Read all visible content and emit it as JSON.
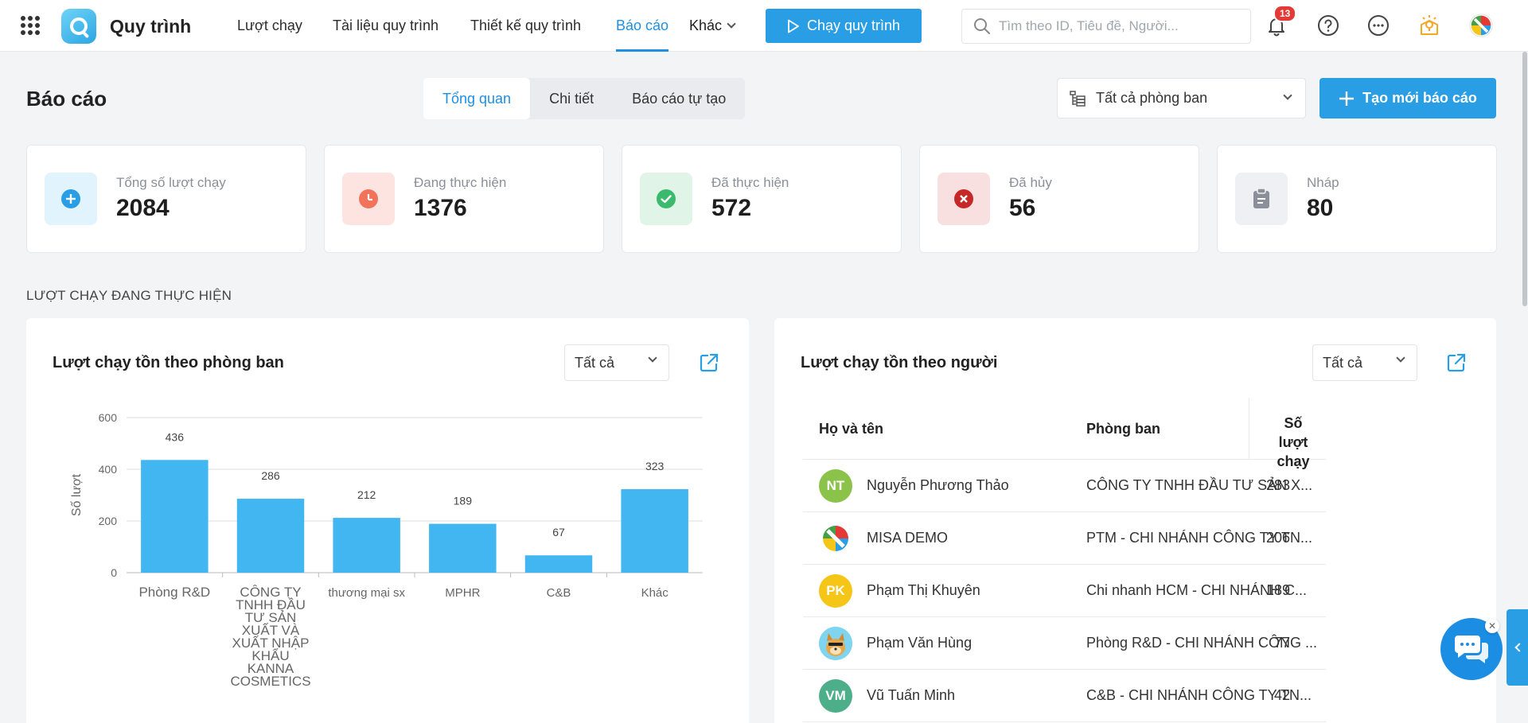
{
  "app": {
    "title": "Quy trình"
  },
  "nav": {
    "items": [
      {
        "label": "Lượt chạy"
      },
      {
        "label": "Tài liệu quy trình"
      },
      {
        "label": "Thiết kế quy trình"
      },
      {
        "label": "Báo cáo"
      }
    ],
    "more_label": "Khác",
    "run_button": "Chạy quy trình"
  },
  "search": {
    "placeholder": "Tìm theo ID, Tiêu đề, Người..."
  },
  "notifications": {
    "count": "13"
  },
  "page": {
    "title": "Báo cáo"
  },
  "tabs": [
    {
      "label": "Tổng quan"
    },
    {
      "label": "Chi tiết"
    },
    {
      "label": "Báo cáo tự tạo"
    }
  ],
  "department_filter": {
    "value": "Tất cả phòng ban"
  },
  "create_button": "Tạo mới báo cáo",
  "stats": [
    {
      "label": "Tổng số lượt chạy",
      "value": "2084",
      "color": "#2a9ee4",
      "bg": "#e1f3fd",
      "icon": "plus-circle-icon"
    },
    {
      "label": "Đang thực hiện",
      "value": "1376",
      "color": "#f0735a",
      "bg": "#fde4e1",
      "icon": "clock-icon"
    },
    {
      "label": "Đã thực hiện",
      "value": "572",
      "color": "#3bba6d",
      "bg": "#e0f5e8",
      "icon": "check-circle-icon"
    },
    {
      "label": "Đã hủy",
      "value": "56",
      "color": "#d32f2f",
      "bg": "#f9e0e0",
      "icon": "x-circle-icon"
    },
    {
      "label": "Nháp",
      "value": "80",
      "color": "#8a8f99",
      "bg": "#eef0f3",
      "icon": "clipboard-icon"
    }
  ],
  "section_title": "LƯỢT CHẠY ĐANG THỰC HIỆN",
  "dept_panel": {
    "title": "Lượt chạy tồn theo phòng ban",
    "filter": "Tất cả"
  },
  "person_panel": {
    "title": "Lượt chạy tồn theo người",
    "filter": "Tất cả",
    "headers": {
      "name": "Họ và tên",
      "dept": "Phòng ban",
      "count_line1": "Số lượt",
      "count_line2": "chạy"
    },
    "rows": [
      {
        "initials": "NT",
        "avatar_color": "#8bc34a",
        "name": "Nguyễn Phương Thảo",
        "dept": "CÔNG TY TNHH ĐẦU TƯ SẢN X...",
        "count": "283"
      },
      {
        "initials": "",
        "avatar_color": "#ffffff",
        "name": "MISA DEMO",
        "dept": "PTM - CHI NHÁNH CÔNG TY TN...",
        "count": "206"
      },
      {
        "initials": "PK",
        "avatar_color": "#f5c518",
        "name": "Phạm Thị Khuyên",
        "dept": "Chi nhanh HCM - CHI NHÁNH C...",
        "count": "189"
      },
      {
        "initials": "",
        "avatar_color": "#7fd4f0",
        "name": "Phạm Văn Hùng",
        "dept": "Phòng R&D - CHI NHÁNH CÔNG ...",
        "count": "77"
      },
      {
        "initials": "VM",
        "avatar_color": "#4caf8a",
        "name": "Vũ Tuấn Minh",
        "dept": "C&B - CHI NHÁNH CÔNG TY TN...",
        "count": "42"
      }
    ]
  },
  "chart_data": {
    "type": "bar",
    "title": "Lượt chạy tồn theo phòng ban",
    "ylabel": "Số lượt",
    "xlabel": "",
    "ylim": [
      0,
      600
    ],
    "yticks": [
      0,
      200,
      400,
      600
    ],
    "grid": true,
    "color": "#41b6f0",
    "categories": [
      "Phòng R&D",
      "CÔNG TY TNHH ĐẦU TƯ SẢN XUẤT VÀ XUẤT NHẬP KHẨU KANNA COSMETICS",
      "thương mại sx",
      "MPHR",
      "C&B",
      "Khác"
    ],
    "category_lines": [
      [
        "Phòng R&D"
      ],
      [
        "CÔNG TY",
        "TNHH ĐẦU",
        "TƯ SẢN",
        "XUẤT VÀ",
        "XUẤT NHẬP",
        "KHẨU",
        "KANNA",
        "COSMETICS"
      ],
      [
        "thương mại sx"
      ],
      [
        "MPHR"
      ],
      [
        "C&B"
      ],
      [
        "Khác"
      ]
    ],
    "values": [
      436,
      286,
      212,
      189,
      67,
      323
    ]
  }
}
